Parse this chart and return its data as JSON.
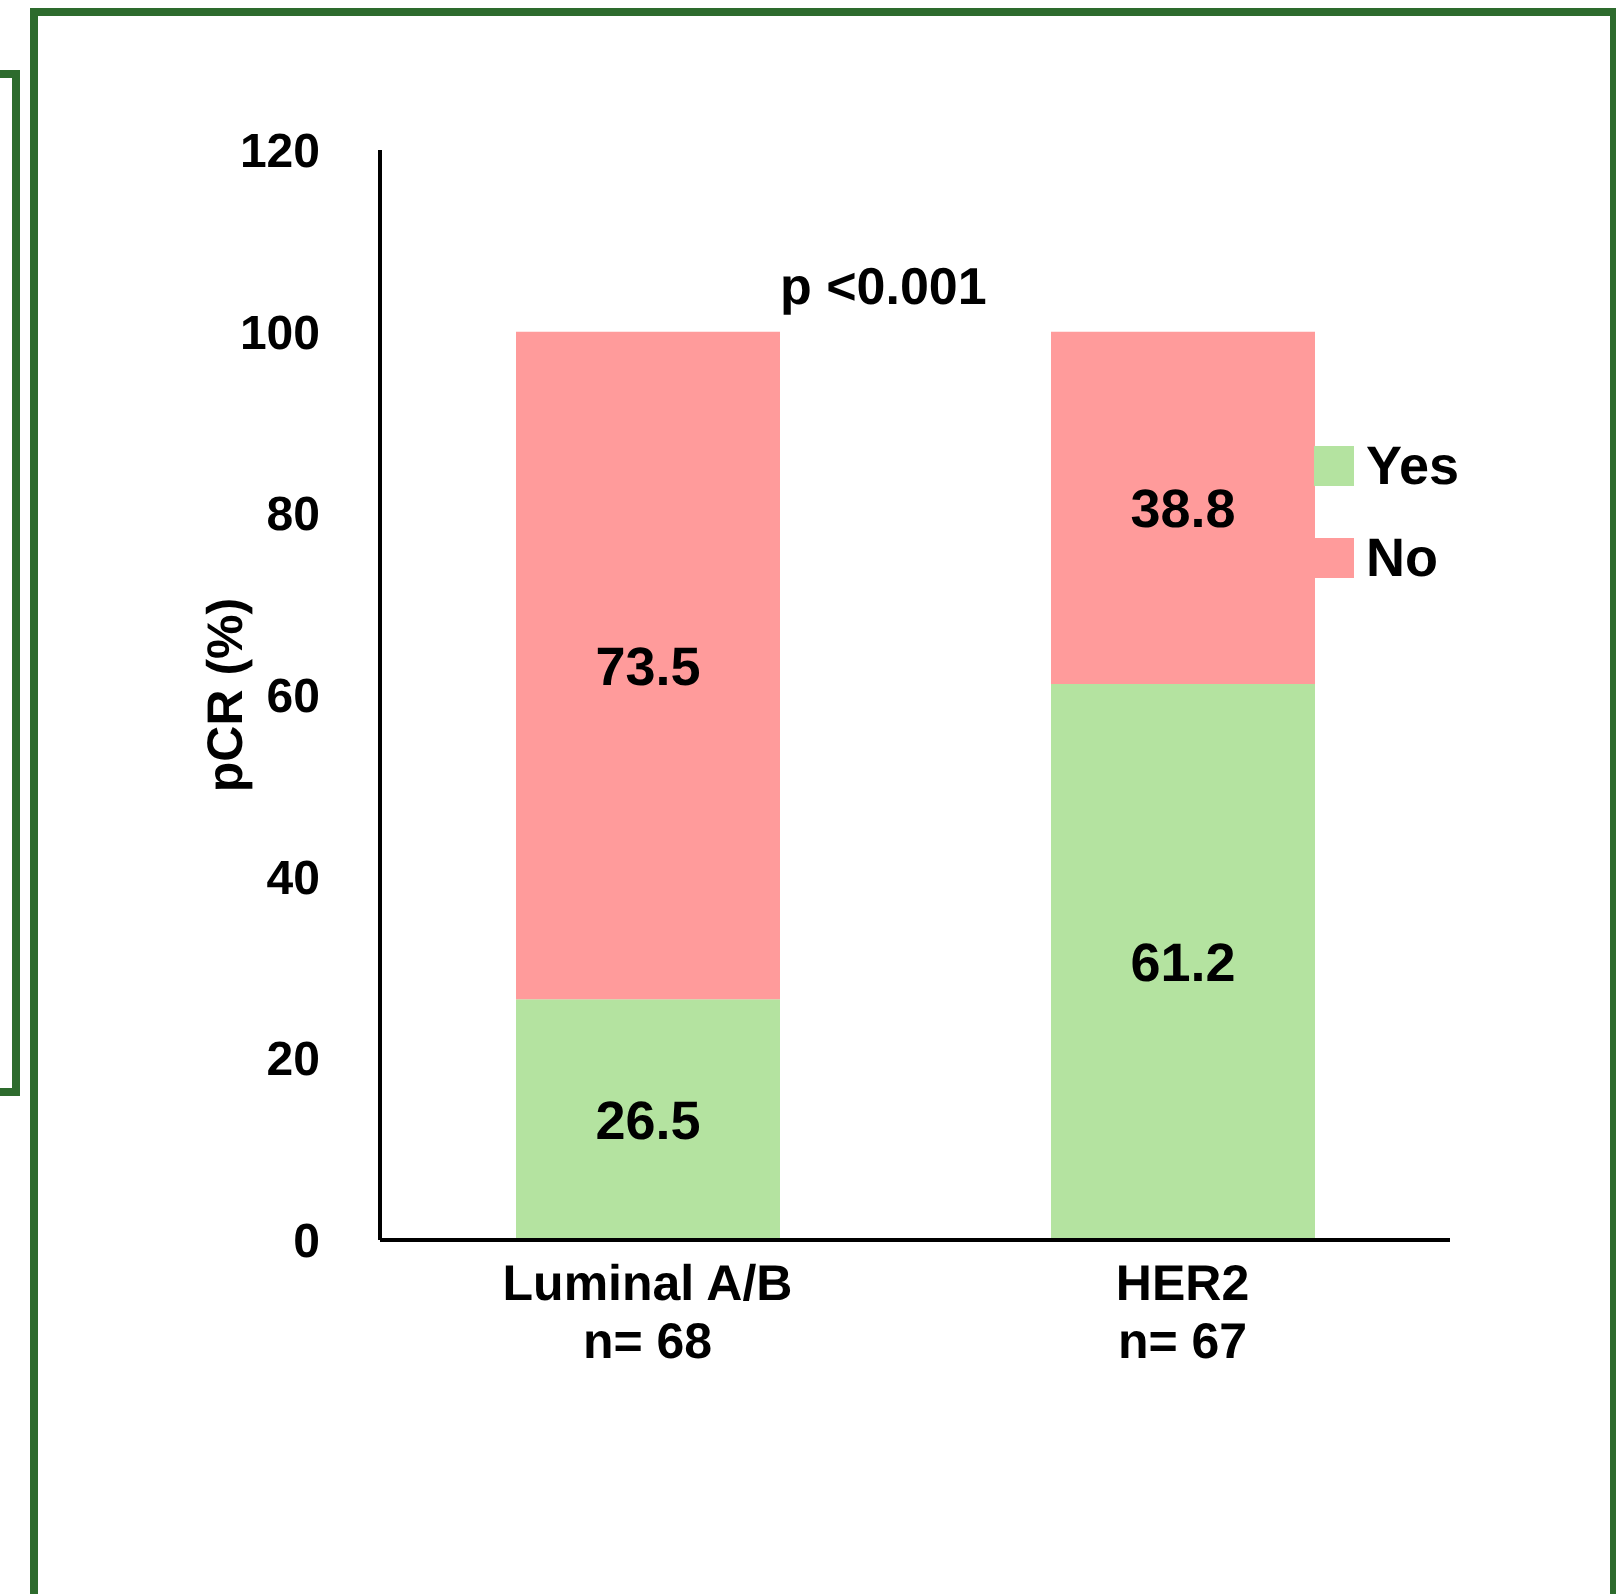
{
  "chart_data": {
    "type": "bar",
    "stacked": true,
    "ylabel": "pCR (%)",
    "categories": [
      "Luminal A/B\nn= 68",
      "HER2\nn= 67"
    ],
    "series": [
      {
        "name": "Yes",
        "color": "#b4e3a0",
        "values": [
          26.5,
          61.2
        ]
      },
      {
        "name": "No",
        "color": "#ff9b9b",
        "values": [
          73.5,
          38.8
        ]
      }
    ],
    "ylim": [
      0,
      120
    ],
    "yticks": [
      0,
      20,
      40,
      60,
      80,
      100,
      120
    ],
    "grid": false,
    "legend": "right",
    "data_labels": true,
    "annotations": [
      "p <0.001"
    ]
  }
}
